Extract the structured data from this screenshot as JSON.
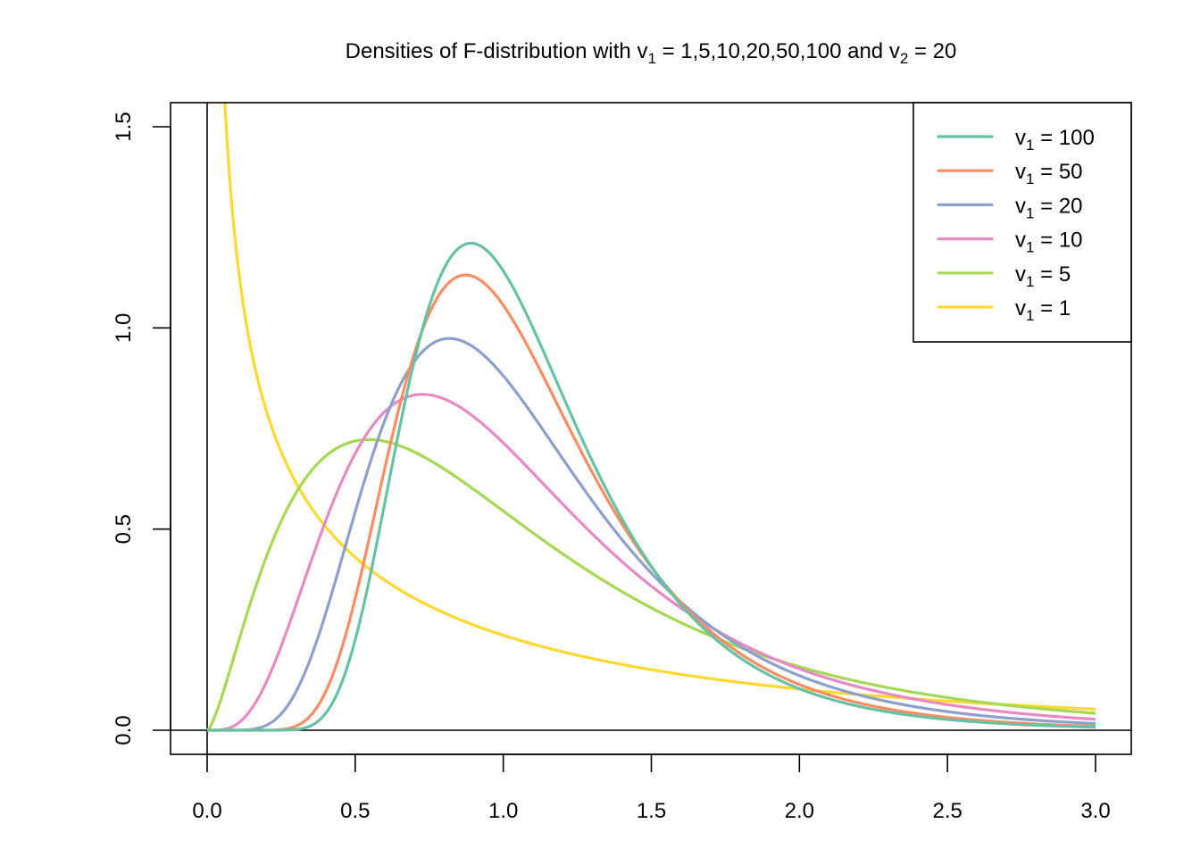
{
  "chart_data": {
    "type": "line",
    "title": "Densities of F-distribution with v₁ = 1,5,10,20,50,100 and v₂ = 20",
    "title_parts": {
      "prefix": "Densities of F-distribution with v",
      "sub1": "1",
      "mid": " = 1,5,10,20,50,100 and v",
      "sub2": "2",
      "suffix": " = 20"
    },
    "xlabel": "",
    "ylabel": "",
    "xlim": [
      0,
      3
    ],
    "ylim": [
      0,
      1.5
    ],
    "x_ticks": [
      0,
      0.5,
      1,
      1.5,
      2,
      2.5,
      3
    ],
    "x_tick_labels": [
      "0.0",
      "0.5",
      "1.0",
      "1.5",
      "2.0",
      "2.5",
      "3.0"
    ],
    "y_ticks": [
      0,
      0.5,
      1,
      1.5
    ],
    "y_tick_labels": [
      "0.0",
      "0.5",
      "1.0",
      "1.5"
    ],
    "grid": false,
    "reference_lines": {
      "h": 0,
      "v": 0
    },
    "legend_position": "topright",
    "df2": 20,
    "series": [
      {
        "name": "v1 = 100",
        "label_v": "v",
        "label_sub": "1",
        "label_val": " = 100",
        "df1": 100,
        "color": "#66C2A5",
        "x": [
          0,
          0.25,
          0.5,
          0.75,
          0.9,
          1.0,
          1.25,
          1.5,
          2.0,
          2.5,
          3.0
        ],
        "values": [
          0,
          0.003,
          0.31,
          1.0,
          1.21,
          1.15,
          0.72,
          0.37,
          0.1,
          0.028,
          0.008
        ]
      },
      {
        "name": "v1 = 50",
        "label_v": "v",
        "label_sub": "1",
        "label_val": " = 50",
        "df1": 50,
        "color": "#FC8D62",
        "x": [
          0,
          0.25,
          0.5,
          0.75,
          0.87,
          1.0,
          1.25,
          1.5,
          2.0,
          2.5,
          3.0
        ],
        "values": [
          0,
          0.01,
          0.37,
          1.01,
          1.13,
          1.07,
          0.7,
          0.38,
          0.11,
          0.033,
          0.011
        ]
      },
      {
        "name": "v1 = 20",
        "label_v": "v",
        "label_sub": "1",
        "label_val": " = 20",
        "df1": 20,
        "color": "#8DA0CB",
        "x": [
          0,
          0.25,
          0.5,
          0.75,
          0.82,
          1.0,
          1.25,
          1.5,
          2.0,
          2.5,
          3.0
        ],
        "values": [
          0,
          0.06,
          0.55,
          0.96,
          0.97,
          0.88,
          0.62,
          0.38,
          0.13,
          0.045,
          0.017
        ]
      },
      {
        "name": "v1 = 10",
        "label_v": "v",
        "label_sub": "1",
        "label_val": " = 10",
        "df1": 10,
        "color": "#E78AC3",
        "x": [
          0,
          0.25,
          0.5,
          0.73,
          1.0,
          1.25,
          1.5,
          2.0,
          2.5,
          3.0
        ],
        "values": [
          0,
          0.2,
          0.68,
          0.83,
          0.74,
          0.55,
          0.37,
          0.15,
          0.062,
          0.027
        ]
      },
      {
        "name": "v1 = 5",
        "label_v": "v",
        "label_sub": "1",
        "label_val": " = 5",
        "df1": 5,
        "color": "#A6D854",
        "x": [
          0,
          0.25,
          0.55,
          0.75,
          1.0,
          1.25,
          1.5,
          2.0,
          2.5,
          3.0
        ],
        "values": [
          0,
          0.55,
          0.72,
          0.67,
          0.53,
          0.4,
          0.29,
          0.15,
          0.08,
          0.042
        ]
      },
      {
        "name": "v1 = 1",
        "label_v": "v",
        "label_sub": "1",
        "label_val": " = 1",
        "df1": 1,
        "color": "#FFD92F",
        "x": [
          0.06,
          0.1,
          0.25,
          0.5,
          0.75,
          1.0,
          1.5,
          2.0,
          2.5,
          3.0
        ],
        "values": [
          1.55,
          1.2,
          0.72,
          0.43,
          0.3,
          0.24,
          0.15,
          0.1,
          0.07,
          0.052
        ]
      }
    ]
  }
}
